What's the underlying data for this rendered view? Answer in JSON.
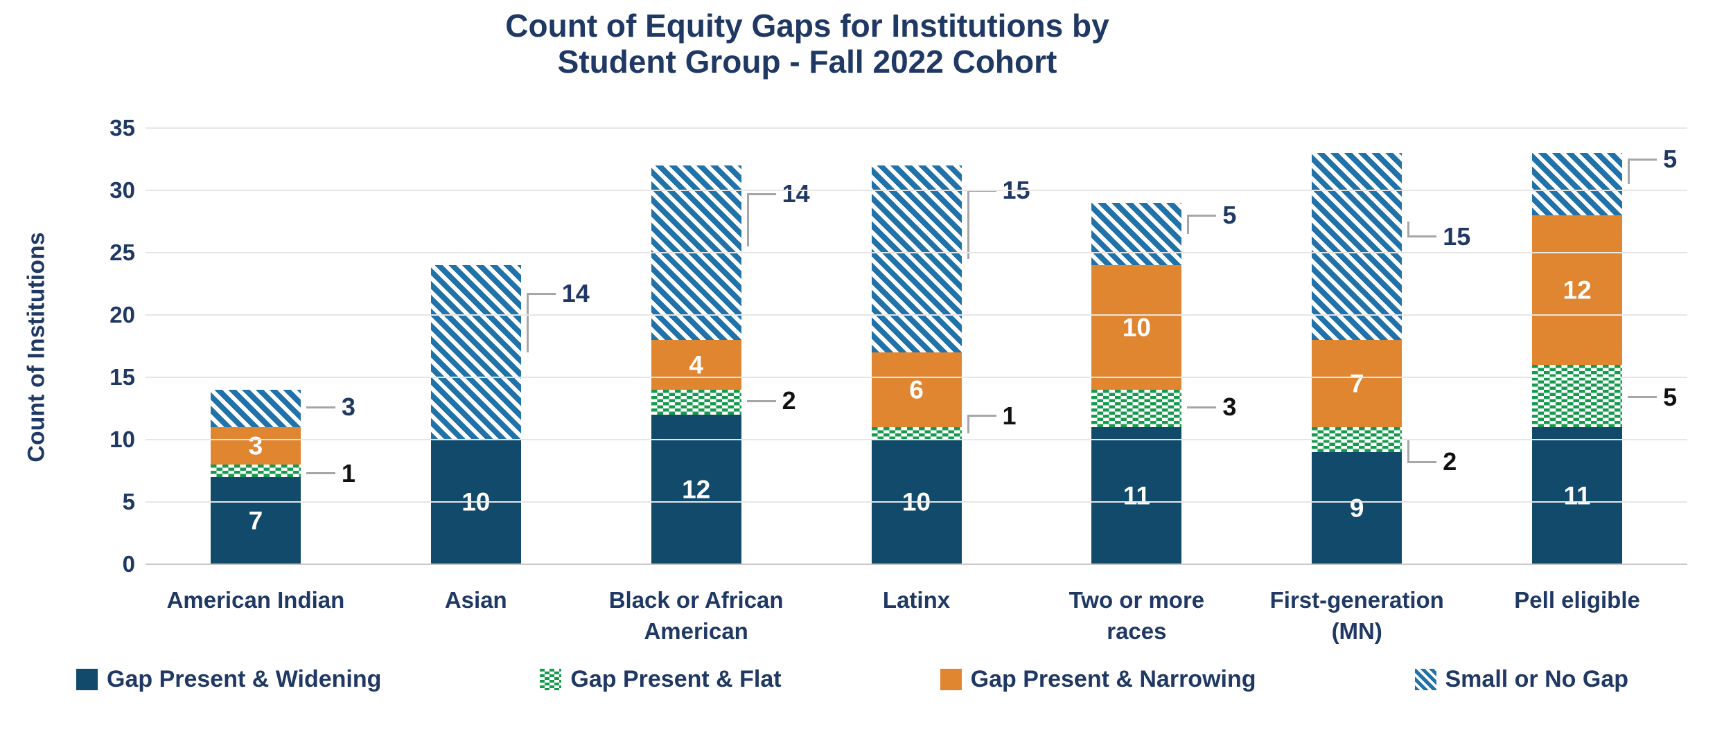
{
  "title": {
    "line1": "Count of Equity Gaps for Institutions by",
    "line2": "Student Group - Fall 2022 Cohort"
  },
  "y_axis": {
    "label": "Count of Institutions",
    "ticks": [
      0,
      5,
      10,
      15,
      20,
      25,
      30,
      35
    ]
  },
  "legend": [
    {
      "label": "Gap Present & Widening",
      "swatch": "solid-dark-blue"
    },
    {
      "label": "Gap Present & Flat",
      "swatch": "green-white-dash-pattern"
    },
    {
      "label": "Gap Present & Narrowing",
      "swatch": "solid-orange"
    },
    {
      "label": "Small or No Gap",
      "swatch": "blue-diagonal-hatch-pattern"
    }
  ],
  "colors": {
    "navy_text": "#1F3864",
    "black_text": "#111111",
    "widening_blue": "#124A6C",
    "flat_green": "#169A4E",
    "narrowing_orange": "#E08530",
    "hatch_stripe_blue": "#2072A8",
    "hatch_background": "#FFFFFF",
    "bar_value_label": "#FFFFFF",
    "leader_gray": "#A6A6A6",
    "gridline": "#E6E6E6",
    "baseline": "#C9C9C9"
  },
  "chart_data": {
    "type": "bar",
    "stacked": true,
    "title": "Count of Equity Gaps for Institutions by Student Group - Fall 2022 Cohort",
    "xlabel": "",
    "ylabel": "Count of Institutions",
    "ylim": [
      0,
      35
    ],
    "ytick_step": 5,
    "grid": true,
    "legend_position": "bottom",
    "categories": [
      "American Indian",
      "Asian",
      "Black or African American",
      "Latinx",
      "Two or more races",
      "First-generation (MN)",
      "Pell eligible"
    ],
    "category_label_lines": [
      [
        "American Indian"
      ],
      [
        "Asian"
      ],
      [
        "Black or African",
        "American"
      ],
      [
        "Latinx"
      ],
      [
        "Two or more",
        "races"
      ],
      [
        "First-generation",
        "(MN)"
      ],
      [
        "Pell eligible"
      ]
    ],
    "series": [
      {
        "key": "widening",
        "name": "Gap Present & Widening",
        "values": [
          7,
          10,
          12,
          10,
          11,
          9,
          11
        ]
      },
      {
        "key": "flat",
        "name": "Gap Present & Flat",
        "values": [
          1,
          0,
          2,
          1,
          3,
          2,
          5
        ]
      },
      {
        "key": "narrowing",
        "name": "Gap Present & Narrowing",
        "values": [
          3,
          0,
          4,
          6,
          10,
          7,
          12
        ]
      },
      {
        "key": "gap",
        "name": "Small or No Gap",
        "values": [
          3,
          14,
          14,
          15,
          5,
          15,
          5
        ]
      }
    ],
    "totals": [
      14,
      24,
      32,
      32,
      29,
      33,
      33
    ],
    "callouts": [
      [
        {
          "series": "flat",
          "value": 1,
          "attach_y": 7.5,
          "label_y": 7.3,
          "color": "black"
        },
        {
          "series": "gap",
          "value": 3,
          "attach_y": 12.5,
          "label_y": 12.6,
          "color": "navy"
        }
      ],
      [
        {
          "series": "gap",
          "value": 14,
          "attach_y": 17.0,
          "label_y": 21.7,
          "color": "navy"
        }
      ],
      [
        {
          "series": "flat",
          "value": 2,
          "attach_y": 13.0,
          "label_y": 13.1,
          "color": "black"
        },
        {
          "series": "gap",
          "value": 14,
          "attach_y": 25.5,
          "label_y": 29.7,
          "color": "navy"
        }
      ],
      [
        {
          "series": "flat",
          "value": 1,
          "attach_y": 10.5,
          "label_y": 11.9,
          "color": "black"
        },
        {
          "series": "gap",
          "value": 15,
          "attach_y": 24.5,
          "label_y": 30.0,
          "color": "navy"
        }
      ],
      [
        {
          "series": "flat",
          "value": 3,
          "attach_y": 12.5,
          "label_y": 12.6,
          "color": "black"
        },
        {
          "series": "gap",
          "value": 5,
          "attach_y": 26.5,
          "label_y": 28.0,
          "color": "navy"
        }
      ],
      [
        {
          "series": "flat",
          "value": 2,
          "attach_y": 10.0,
          "label_y": 8.2,
          "color": "black"
        },
        {
          "series": "gap",
          "value": 15,
          "attach_y": 27.5,
          "label_y": 26.3,
          "color": "navy"
        }
      ],
      [
        {
          "series": "flat",
          "value": 5,
          "attach_y": 13.5,
          "label_y": 13.4,
          "color": "black"
        },
        {
          "series": "gap",
          "value": 5,
          "attach_y": 30.5,
          "label_y": 32.5,
          "color": "navy"
        }
      ]
    ]
  }
}
